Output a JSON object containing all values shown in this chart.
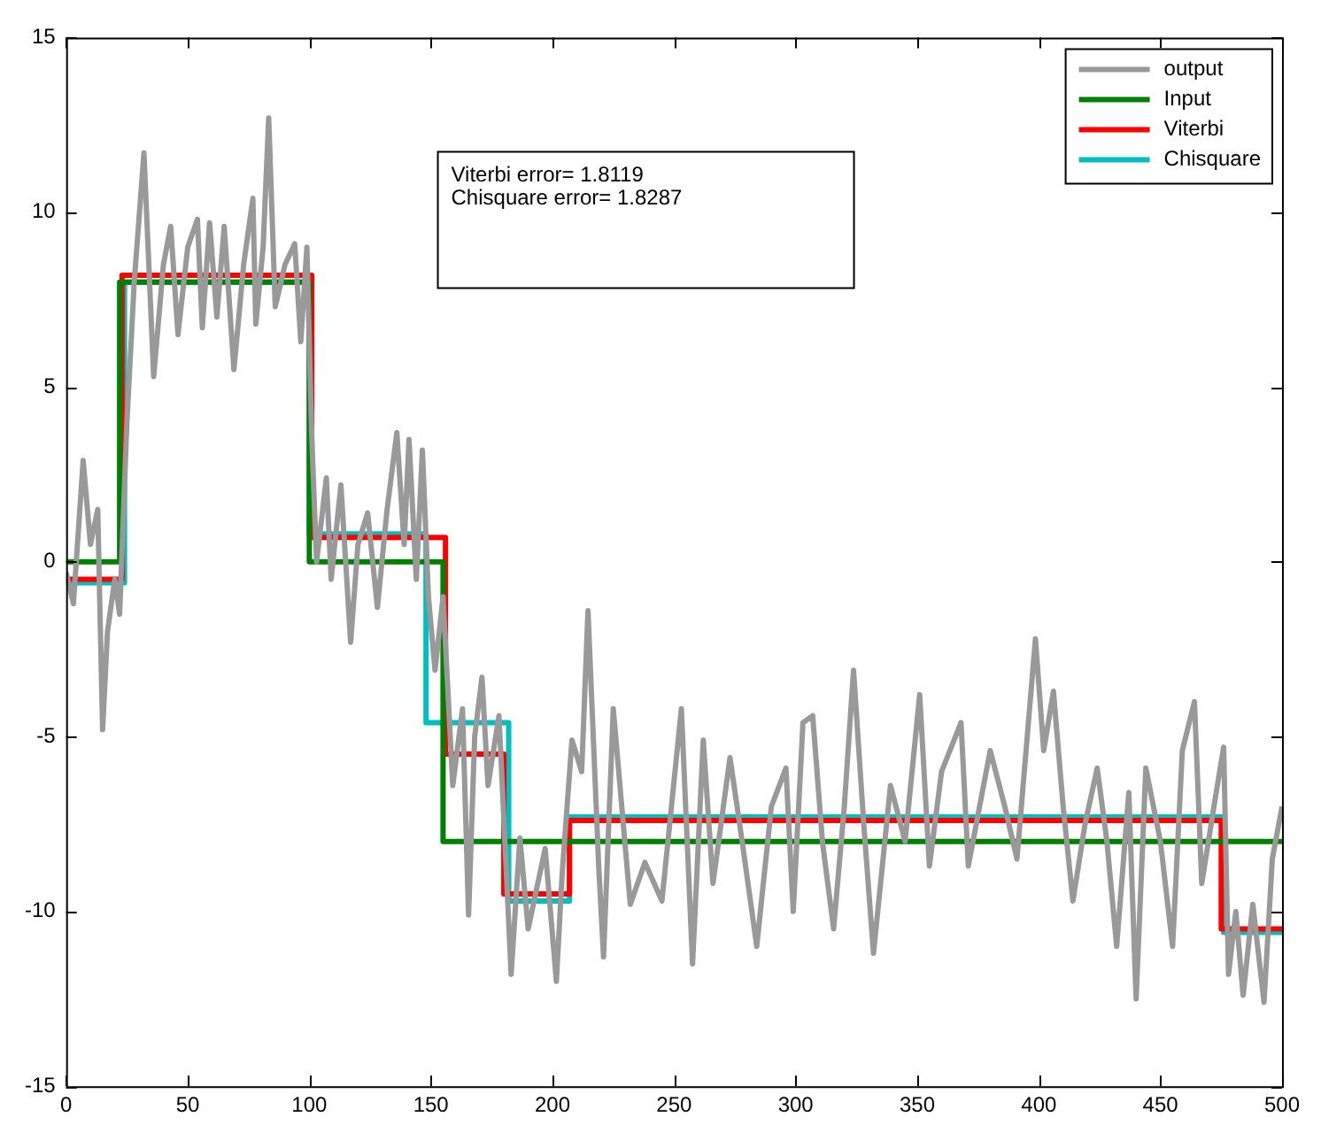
{
  "chart_data": {
    "type": "line",
    "xlim": [
      0,
      500
    ],
    "ylim": [
      -15,
      15
    ],
    "xticks": [
      0,
      50,
      100,
      150,
      200,
      250,
      300,
      350,
      400,
      450,
      500
    ],
    "yticks": [
      -15,
      -10,
      -5,
      0,
      5,
      10,
      15
    ],
    "grid": false,
    "legend": "top right",
    "marker": "none",
    "line_style": "solid",
    "annotations": [
      "Viterbi error= 1.8119",
      "Chisquare error= 1.8287"
    ],
    "series": [
      {
        "name": "output",
        "color": "#999999",
        "type": "line",
        "x": [
          0,
          3,
          7,
          10,
          13,
          15,
          17,
          20,
          22,
          25,
          28,
          32,
          36,
          40,
          43,
          46,
          50,
          54,
          56,
          59,
          62,
          65,
          69,
          73,
          76.8,
          78,
          81,
          83.3,
          86,
          90,
          94,
          96.5,
          99,
          101,
          103,
          107,
          109,
          113,
          117,
          120,
          124,
          128,
          132,
          136,
          139,
          141,
          144,
          146.5,
          149,
          151.7,
          155,
          159,
          163,
          165.5,
          168,
          171,
          173.5,
          178,
          183,
          186.6,
          190,
          197,
          201.6,
          204,
          208,
          212,
          214.6,
          219,
          221,
          225,
          232,
          238,
          245,
          253,
          257.6,
          262,
          266,
          273,
          278,
          284,
          290,
          296,
          299,
          303,
          307,
          311,
          315.6,
          320,
          323.8,
          328,
          332,
          339,
          345,
          351,
          355,
          360,
          368,
          371,
          380,
          386,
          391,
          398.6,
          402,
          406,
          410,
          414,
          419,
          424,
          428,
          432,
          437,
          440,
          444,
          450,
          455,
          459,
          464,
          467,
          472,
          476,
          478,
          481,
          484,
          488,
          492.6,
          496,
          500
        ],
        "values": [
          -0.3,
          -1.2,
          2.9,
          0.5,
          1.5,
          -4.8,
          -2,
          -0.5,
          -1.5,
          4,
          8,
          11.7,
          5.3,
          8.5,
          9.6,
          6.5,
          9,
          9.8,
          6.7,
          9.7,
          7,
          9.6,
          5.5,
          8.5,
          10.4,
          6.8,
          9,
          12.7,
          7.3,
          8.5,
          9.1,
          6.3,
          9,
          3.6,
          0,
          2.4,
          -0.5,
          2.2,
          -2.3,
          0.5,
          1.4,
          -1.3,
          1.5,
          3.7,
          0.5,
          3.5,
          -0.5,
          3.2,
          -1,
          -3.1,
          -1,
          -6.4,
          -4.2,
          -10.1,
          -5,
          -3.3,
          -6.4,
          -4.4,
          -11.8,
          -7.9,
          -10.5,
          -8.2,
          -12,
          -8.9,
          -5.1,
          -6,
          -1.4,
          -8.7,
          -11.3,
          -4.2,
          -9.8,
          -8.6,
          -9.7,
          -4.2,
          -11.5,
          -5.1,
          -9.2,
          -5.6,
          -8,
          -11,
          -7,
          -5.9,
          -10,
          -4.6,
          -4.4,
          -8,
          -10.5,
          -7,
          -3.1,
          -7.5,
          -11.2,
          -6.4,
          -8,
          -3.8,
          -8.7,
          -6,
          -4.6,
          -8.7,
          -5.4,
          -7,
          -8.5,
          -2.2,
          -5.4,
          -3.7,
          -7,
          -9.7,
          -7.5,
          -5.9,
          -8,
          -11,
          -6.6,
          -12.5,
          -5.9,
          -8,
          -11,
          -5.4,
          -4,
          -9.2,
          -7,
          -5.3,
          -11.8,
          -10,
          -12.4,
          -9.8,
          -12.6,
          -8.5,
          -7
        ]
      },
      {
        "name": "Input",
        "color": "#008000",
        "type": "step",
        "x": [
          0,
          22,
          100,
          155,
          500
        ],
        "values": [
          0,
          8,
          0,
          -8,
          -8
        ]
      },
      {
        "name": "Viterbi",
        "color": "#ff0000",
        "type": "step",
        "x": [
          0,
          23,
          101,
          156,
          180,
          207,
          475,
          500
        ],
        "values": [
          -0.5,
          8.2,
          0.7,
          -5.5,
          -9.5,
          -7.4,
          -10.5,
          -10.5
        ]
      },
      {
        "name": "Chisquare",
        "color": "#00bfbf",
        "type": "step",
        "x": [
          0,
          24,
          100,
          148,
          182,
          207,
          476,
          500
        ],
        "values": [
          -0.6,
          8,
          0.8,
          -4.6,
          -9.7,
          -7.3,
          -10.6,
          -10.6
        ]
      }
    ]
  }
}
